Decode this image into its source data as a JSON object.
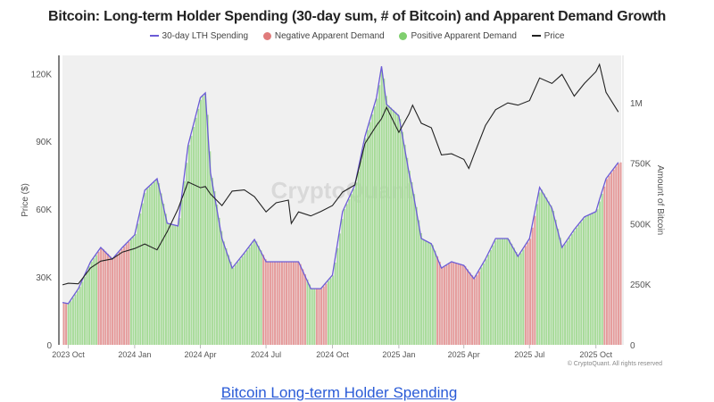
{
  "chart_data": {
    "type": "bar+line",
    "title": "Bitcoin: Long-term Holder Spending (30-day sum, # of Bitcoin) and Apparent Demand Growth",
    "legend": {
      "placement": "top-center",
      "items": [
        {
          "label": "30-day LTH Spending",
          "color": "#6b5bd6",
          "shape": "line"
        },
        {
          "label": "Negative Apparent Demand",
          "color": "#e07b7b",
          "shape": "dot"
        },
        {
          "label": "Positive Apparent Demand",
          "color": "#7fcf6e",
          "shape": "dot"
        },
        {
          "label": "Price",
          "color": "#222222",
          "shape": "line"
        }
      ]
    },
    "xlim": [
      "2023-09-23",
      "2025-11-05"
    ],
    "x_ticks": [
      {
        "date": "2023-10-01",
        "label": "2023 Oct"
      },
      {
        "date": "2024-01-01",
        "label": "2024 Jan"
      },
      {
        "date": "2024-04-01",
        "label": "2024 Apr"
      },
      {
        "date": "2024-07-01",
        "label": "2024 Jul"
      },
      {
        "date": "2024-10-01",
        "label": "2024 Oct"
      },
      {
        "date": "2025-01-01",
        "label": "2025 Jan"
      },
      {
        "date": "2025-04-01",
        "label": "2025 Apr"
      },
      {
        "date": "2025-07-01",
        "label": "2025 Jul"
      },
      {
        "date": "2025-10-01",
        "label": "2025 Oct"
      }
    ],
    "left_axis": {
      "label": "Price ($)",
      "ylim": [
        0,
        128000
      ],
      "ticks": [
        {
          "v": 0,
          "label": "0"
        },
        {
          "v": 30000,
          "label": "30K"
        },
        {
          "v": 60000,
          "label": "60K"
        },
        {
          "v": 90000,
          "label": "90K"
        },
        {
          "v": 120000,
          "label": "120K"
        }
      ]
    },
    "right_axis": {
      "label": "Amount of Bitcoin",
      "ylim": [
        0,
        1195000
      ],
      "ticks": [
        {
          "v": 0,
          "label": "0"
        },
        {
          "v": 250000,
          "label": "250K"
        },
        {
          "v": 500000,
          "label": "500K"
        },
        {
          "v": 750000,
          "label": "750K"
        },
        {
          "v": 1000000,
          "label": "1M"
        }
      ]
    },
    "grid": false,
    "watermark": "CryptoQuant",
    "x": [
      "2023-09-23",
      "2023-10-01",
      "2023-10-15",
      "2023-11-01",
      "2023-11-15",
      "2023-12-01",
      "2023-12-15",
      "2024-01-01",
      "2024-01-15",
      "2024-02-01",
      "2024-02-15",
      "2024-03-01",
      "2024-03-15",
      "2024-04-01",
      "2024-04-08",
      "2024-04-15",
      "2024-05-01",
      "2024-05-15",
      "2024-06-01",
      "2024-06-15",
      "2024-07-01",
      "2024-07-15",
      "2024-08-01",
      "2024-08-05",
      "2024-08-15",
      "2024-09-01",
      "2024-09-15",
      "2024-10-01",
      "2024-10-15",
      "2024-11-01",
      "2024-11-15",
      "2024-12-01",
      "2024-12-08",
      "2024-12-15",
      "2025-01-01",
      "2025-01-15",
      "2025-01-20",
      "2025-02-01",
      "2025-02-15",
      "2025-03-01",
      "2025-03-15",
      "2025-04-01",
      "2025-04-08",
      "2025-04-15",
      "2025-05-01",
      "2025-05-15",
      "2025-06-01",
      "2025-06-15",
      "2025-07-01",
      "2025-07-15",
      "2025-08-01",
      "2025-08-15",
      "2025-09-01",
      "2025-09-15",
      "2025-10-01",
      "2025-10-06",
      "2025-10-15",
      "2025-11-01"
    ],
    "series": [
      {
        "name": "30-day LTH Spending",
        "axis": "right",
        "values": [
          175000,
          170000,
          232000,
          343000,
          402000,
          354000,
          402000,
          454000,
          638000,
          686000,
          502000,
          491000,
          823000,
          1020000,
          1040000,
          712000,
          439000,
          317000,
          380000,
          435000,
          343000,
          343000,
          343000,
          343000,
          343000,
          232000,
          232000,
          288000,
          550000,
          660000,
          860000,
          1020000,
          1150000,
          993000,
          945000,
          712000,
          640000,
          439000,
          417000,
          317000,
          343000,
          328000,
          300000,
          273000,
          354000,
          439000,
          439000,
          365000,
          439000,
          650000,
          564000,
          402000,
          476000,
          528000,
          550000,
          600000,
          686000,
          753000
        ]
      },
      {
        "name": "Price",
        "axis": "left",
        "values": [
          26500,
          27200,
          27000,
          34000,
          37000,
          38000,
          41000,
          42600,
          44600,
          42000,
          50000,
          60000,
          72000,
          69500,
          70000,
          66700,
          61600,
          68000,
          68500,
          65500,
          58800,
          62800,
          64000,
          53700,
          58800,
          57000,
          59000,
          61600,
          67500,
          70700,
          89000,
          97000,
          100000,
          105000,
          94000,
          102000,
          106000,
          98000,
          96000,
          84000,
          84500,
          82000,
          78000,
          84000,
          97000,
          104000,
          107000,
          106000,
          108000,
          118000,
          115600,
          119600,
          110000,
          115600,
          120800,
          124000,
          111700,
          103000
        ]
      },
      {
        "name": "Apparent Demand",
        "values": [
          "negative",
          "positive",
          "positive",
          "positive",
          "negative",
          "negative",
          "negative",
          "positive",
          "positive",
          "positive",
          "positive",
          "positive",
          "positive",
          "positive",
          "positive",
          "positive",
          "positive",
          "positive",
          "positive",
          "positive",
          "negative",
          "negative",
          "negative",
          "negative",
          "negative",
          "positive",
          "negative",
          "positive",
          "positive",
          "positive",
          "positive",
          "positive",
          "positive",
          "positive",
          "positive",
          "positive",
          "positive",
          "positive",
          "positive",
          "negative",
          "negative",
          "negative",
          "negative",
          "negative",
          "positive",
          "positive",
          "positive",
          "positive",
          "negative",
          "positive",
          "positive",
          "positive",
          "positive",
          "positive",
          "positive",
          "positive",
          "negative",
          "negative"
        ]
      }
    ]
  },
  "footer": {
    "copyright": "© CryptoQuant. All rights reserved"
  },
  "link": {
    "label": "Bitcoin Long-term Holder Spending"
  }
}
